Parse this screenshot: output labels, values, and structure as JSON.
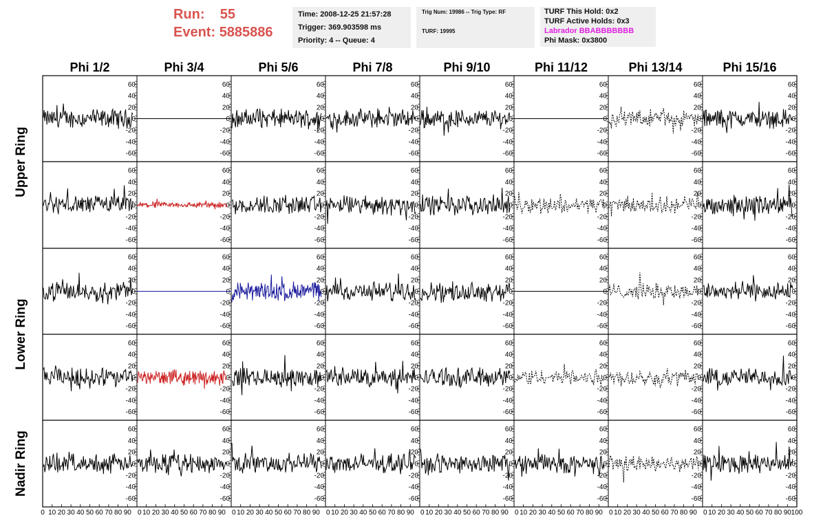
{
  "header": {
    "run_label": "Run:",
    "run_value": "55",
    "event_label": "Event:",
    "event_value": "5885886"
  },
  "info_panel_1": {
    "time": "Time: 2008-12-25 21:57:28",
    "trigger": "Trigger: 369.903598 ms",
    "priority": "Priority: 4 -- Queue: 4"
  },
  "info_panel_2": {
    "trig": "Trig Num: 19986 -- Trig Type: RF",
    "turf": "TURF: 19995"
  },
  "info_panel_3": {
    "this_hold": "TURF This Hold: 0x2",
    "active_holds": "TURF Active Holds: 0x3",
    "labrador": "Labrador BBABBBBBBB",
    "phi_mask": "Phi Mask: 0x3800"
  },
  "colors": {
    "accent_red": "#d9534f",
    "trace_black": "#000000",
    "trace_red": "#cc2222",
    "trace_blue": "#1a1a9c",
    "magenta": "#e020e0",
    "panel_bg": "#efefef"
  },
  "chart_data": {
    "type": "line",
    "column_titles": [
      "Phi 1/2",
      "Phi 3/4",
      "Phi 5/6",
      "Phi 7/8",
      "Phi 9/10",
      "Phi 11/12",
      "Phi 13/14",
      "Phi 15/16"
    ],
    "ring_labels": [
      "Upper Ring",
      "Lower Ring",
      "Nadir Ring"
    ],
    "y_ticks": [
      "60",
      "40",
      "20",
      "0",
      "-20",
      "-40",
      "-60"
    ],
    "x_ticks": [
      "0",
      "10",
      "20",
      "30",
      "40",
      "50",
      "60",
      "70",
      "80",
      "90",
      "100"
    ],
    "ylim": [
      -70,
      70
    ],
    "xlim": [
      0,
      100
    ],
    "grid": false,
    "traces": [
      [
        "black",
        "flat",
        "black",
        "black",
        "black",
        "flat",
        "dashed",
        "black"
      ],
      [
        "black",
        "red",
        "black",
        "black",
        "black",
        "dashed",
        "dashed",
        "black"
      ],
      [
        "black",
        "flat-blue",
        "blue",
        "black",
        "black",
        "flat",
        "dashed",
        "black"
      ],
      [
        "black",
        "red",
        "black",
        "black",
        "black",
        "dashed",
        "dashed",
        "black"
      ],
      [
        "black",
        "black",
        "black",
        "black",
        "black",
        "black",
        "dashed",
        "black"
      ]
    ]
  }
}
